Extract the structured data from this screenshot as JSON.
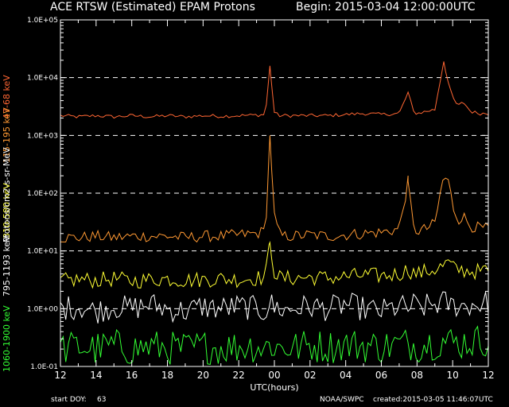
{
  "header": {
    "title": "ACE RTSW (Estimated) EPAM Protons",
    "begin": "Begin: 2015-03-04 12:00:00UTC"
  },
  "footer": {
    "start_doy_label": "start DOY:",
    "start_doy_value": "63",
    "source": "NOAA/SWPC",
    "created": "created:2015-03-05 11:46:07UTC"
  },
  "colors": {
    "background": "#000000",
    "axes": "#ffffff",
    "ch_47_68": "#ff6633",
    "ch_115_195": "#ff9933",
    "ch_310_580": "#ffff33",
    "ch_795_1193": "#ffffff",
    "ch_1060_1900": "#33ff33"
  },
  "chart_data": {
    "type": "line",
    "title": "ACE RTSW (Estimated) EPAM Protons",
    "xlabel": "UTC(hours)",
    "ylabel": "Protons/cm2-s-sr-MeV",
    "yscale": "log",
    "ylim": [
      0.1,
      100000
    ],
    "xlim": [
      12,
      36
    ],
    "y_ticks": [
      "1.0E-01",
      "1.0E+00",
      "1.0E+01",
      "1.0E+02",
      "1.0E+03",
      "1.0E+04",
      "1.0E+05"
    ],
    "x_ticks": [
      "12",
      "14",
      "16",
      "18",
      "20",
      "22",
      "00",
      "02",
      "04",
      "06",
      "08",
      "10",
      "12"
    ],
    "dashed_gridlines_at": [
      1,
      10,
      100,
      1000,
      10000
    ],
    "x": [
      12,
      13,
      14,
      15,
      16,
      17,
      18,
      19,
      20,
      21,
      22,
      23,
      23.5,
      23.75,
      24,
      24.25,
      24.5,
      25,
      26,
      27,
      28,
      29,
      30,
      31,
      31.5,
      31.8,
      32,
      32.5,
      33,
      33.5,
      33.8,
      34,
      34.3,
      34.6,
      35,
      35.5,
      36
    ],
    "series": [
      {
        "name": "47-68 keV",
        "color_key": "ch_47_68",
        "values": [
          2200,
          2100,
          2200,
          2100,
          2200,
          2100,
          2200,
          2100,
          2200,
          2150,
          2200,
          2250,
          2300,
          16000,
          2500,
          2200,
          2200,
          2200,
          2200,
          2200,
          2300,
          2400,
          2300,
          2400,
          5500,
          2600,
          2400,
          2600,
          2800,
          19000,
          7000,
          4500,
          3200,
          3800,
          2600,
          2400,
          2400
        ]
      },
      {
        "name": "115-195 keV",
        "color_key": "ch_115_195",
        "values": [
          17,
          17,
          18,
          17,
          18,
          18,
          18,
          17,
          18,
          18,
          19,
          20,
          22,
          1000,
          40,
          20,
          18,
          18,
          19,
          18,
          19,
          20,
          21,
          24,
          160,
          25,
          22,
          24,
          30,
          200,
          150,
          60,
          35,
          40,
          27,
          25,
          24
        ]
      },
      {
        "name": "310-580 keV",
        "color_key": "ch_310_580",
        "values": [
          3.0,
          3.2,
          3.1,
          3.3,
          3.0,
          3.2,
          3.3,
          3.1,
          3.2,
          3.3,
          3.2,
          3.4,
          3.5,
          14,
          4.5,
          3.5,
          3.3,
          3.4,
          3.5,
          3.4,
          3.6,
          3.8,
          3.7,
          4.0,
          4.8,
          4.2,
          4.0,
          4.4,
          4.8,
          5.5,
          6.5,
          5.0,
          4.8,
          4.6,
          4.5,
          4.4,
          4.6
        ]
      },
      {
        "name": "795-1193 keV",
        "color_key": "ch_795_1193",
        "values": [
          1.0,
          1.1,
          0.9,
          1.1,
          1.0,
          1.2,
          1.0,
          0.9,
          1.1,
          1.0,
          1.1,
          1.0,
          0.9,
          1.3,
          1.0,
          1.1,
          0.9,
          1.0,
          1.1,
          1.0,
          1.2,
          1.0,
          0.9,
          1.1,
          1.0,
          1.2,
          1.0,
          1.1,
          1.2,
          1.3,
          1.2,
          1.1,
          1.2,
          1.1,
          1.2,
          1.2,
          1.3
        ]
      },
      {
        "name": "1060-1900 keV",
        "color_key": "ch_1060_1900",
        "values": [
          0.2,
          0.22,
          0.2,
          0.23,
          0.2,
          0.22,
          0.21,
          0.2,
          0.22,
          0.21,
          0.22,
          0.23,
          0.2,
          0.26,
          0.22,
          0.21,
          0.22,
          0.21,
          0.23,
          0.22,
          0.24,
          0.23,
          0.22,
          0.24,
          0.25,
          0.24,
          0.23,
          0.25,
          0.26,
          0.28,
          0.27,
          0.26,
          0.25,
          0.26,
          0.27,
          0.28,
          0.3
        ]
      }
    ]
  }
}
